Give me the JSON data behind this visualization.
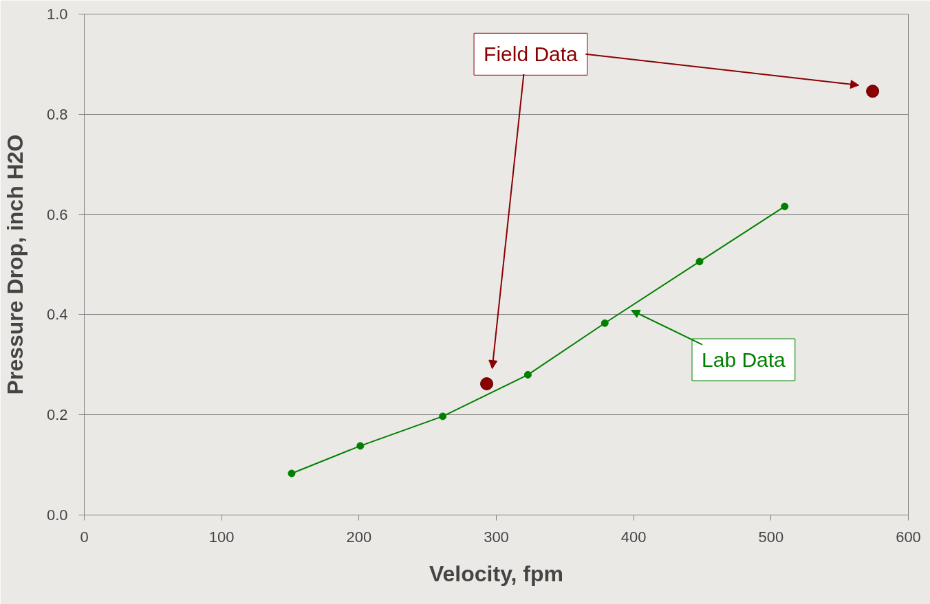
{
  "chart_data": {
    "type": "line",
    "xlabel": "Velocity, fpm",
    "ylabel": "Pressure Drop, inch H2O",
    "xlim": [
      0,
      600
    ],
    "ylim": [
      0,
      1.0
    ],
    "xticks": [
      0,
      100,
      200,
      300,
      400,
      500,
      600
    ],
    "yticks": [
      {
        "value": 0,
        "label": "0.0"
      },
      {
        "value": 0.2,
        "label": "0.2"
      },
      {
        "value": 0.4,
        "label": "0.4"
      },
      {
        "value": 0.6,
        "label": "0.6"
      },
      {
        "value": 0.8,
        "label": "0.8"
      },
      {
        "value": 1.0,
        "label": "1.0"
      }
    ],
    "grid": "y",
    "legend": false,
    "marker": "circle",
    "line_style": "solid",
    "series": [
      {
        "name": "Field Data",
        "type": "scatter",
        "color": "#8b0000",
        "x": [
          293,
          574
        ],
        "values": [
          0.262,
          0.846
        ]
      },
      {
        "name": "Lab Data",
        "type": "line",
        "color": "#008000",
        "x": [
          151,
          201,
          261,
          323,
          379,
          448,
          510
        ],
        "values": [
          0.083,
          0.138,
          0.197,
          0.28,
          0.383,
          0.506,
          0.616
        ]
      }
    ]
  }
}
